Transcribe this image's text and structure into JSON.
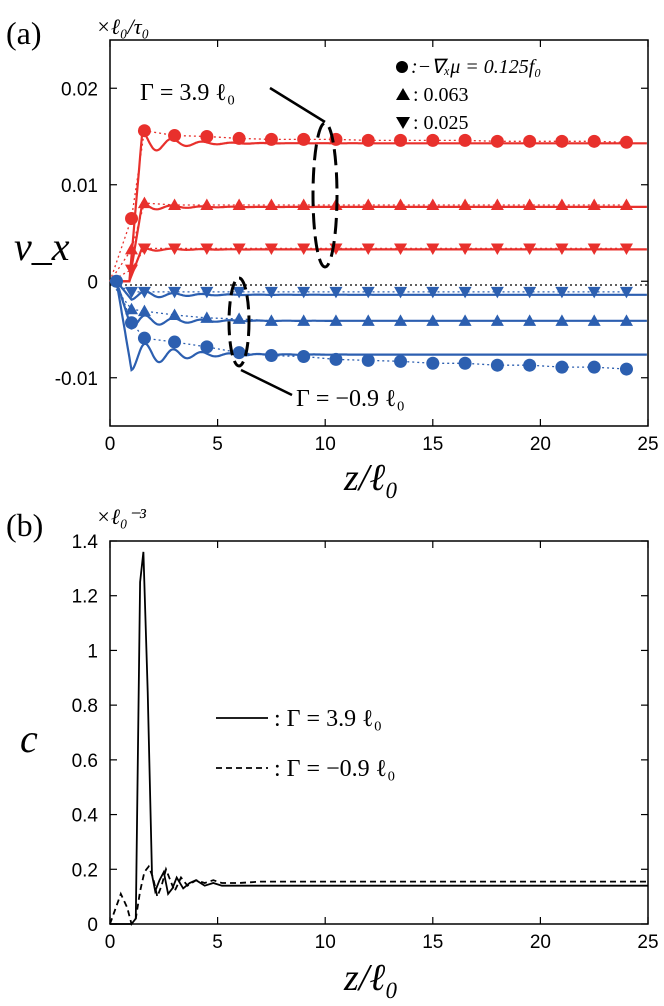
{
  "chart_data": [
    {
      "type": "line",
      "panel_label": "(a)",
      "unit_label": "×ℓ₀/τ₀",
      "xlabel": "z/ℓ₀",
      "ylabel": "v_x",
      "xlim": [
        0,
        25
      ],
      "ylim": [
        -0.015,
        0.025
      ],
      "xticks": [
        "0",
        "5",
        "10",
        "15",
        "20",
        "25"
      ],
      "yticks": [
        "-0.01",
        "0",
        "0.01",
        "0.02"
      ],
      "legend": {
        "placement": "top-right",
        "entries": [
          {
            "marker": "circle",
            "label": ":−∇ₓμ = 0.125f₀"
          },
          {
            "marker": "triangle-up",
            "label": ": 0.063"
          },
          {
            "marker": "triangle-down",
            "label": ": 0.025"
          }
        ]
      },
      "annotations": [
        {
          "text": "Γ = 3.9 ℓ₀",
          "target": "red curves"
        },
        {
          "text": "Γ = −0.9 ℓ₀",
          "target": "blue curves"
        }
      ],
      "colors": {
        "gamma_3_9": "#e8302c",
        "gamma_m0_9": "#2c5fb0"
      },
      "series": [
        {
          "group": "Γ = 3.9 ℓ₀",
          "marker": "circle",
          "color": "#e8302c",
          "line_level": 0.0143,
          "overshoot": 0.0155,
          "points_x": [
            1.0,
            1.6,
            3.0,
            4.5,
            6.0,
            7.5,
            9.0,
            10.5,
            12.0,
            13.5,
            15.0,
            16.5,
            18.0,
            19.5,
            21.0,
            22.5,
            24.0
          ],
          "points_y": [
            0.0065,
            0.0156,
            0.0151,
            0.015,
            0.0148,
            0.0147,
            0.0147,
            0.0147,
            0.0146,
            0.0146,
            0.0146,
            0.0146,
            0.0145,
            0.0145,
            0.0145,
            0.0145,
            0.0144
          ]
        },
        {
          "group": "Γ = 3.9 ℓ₀",
          "marker": "triangle-up",
          "color": "#e8302c",
          "line_level": 0.0077,
          "overshoot": 0.0081,
          "points_x": [
            1.0,
            1.6,
            3.0,
            4.5,
            6.0,
            7.5,
            9.0,
            10.5,
            12.0,
            13.5,
            15.0,
            16.5,
            18.0,
            19.5,
            21.0,
            22.5,
            24.0
          ],
          "points_y": [
            0.0033,
            0.0081,
            0.0079,
            0.0079,
            0.0079,
            0.0079,
            0.0079,
            0.0079,
            0.0079,
            0.0079,
            0.0079,
            0.0079,
            0.0079,
            0.0079,
            0.0079,
            0.0079,
            0.0079
          ]
        },
        {
          "group": "Γ = 3.9 ℓ₀",
          "marker": "triangle-down",
          "color": "#e8302c",
          "line_level": 0.0033,
          "overshoot": 0.0035,
          "points_x": [
            1.0,
            1.6,
            3.0,
            4.5,
            6.0,
            7.5,
            9.0,
            10.5,
            12.0,
            13.5,
            15.0,
            16.5,
            18.0,
            19.5,
            21.0,
            22.5,
            24.0
          ],
          "points_y": [
            0.0012,
            0.0034,
            0.0034,
            0.0034,
            0.0034,
            0.0034,
            0.0034,
            0.0034,
            0.0034,
            0.0034,
            0.0034,
            0.0034,
            0.0034,
            0.0034,
            0.0034,
            0.0034,
            0.0034
          ]
        },
        {
          "group": "Γ = −0.9 ℓ₀",
          "marker": "circle",
          "color": "#2c5fb0",
          "line_level": -0.0076,
          "overshoot": -0.0092,
          "points_x": [
            0.3,
            1.0,
            1.6,
            3.0,
            4.5,
            6.0,
            7.5,
            9.0,
            10.5,
            12.0,
            13.5,
            15.0,
            16.5,
            18.0,
            19.5,
            21.0,
            22.5,
            24.0
          ],
          "points_y": [
            0.0,
            -0.0043,
            -0.0059,
            -0.0063,
            -0.0068,
            -0.0074,
            -0.0077,
            -0.0078,
            -0.0081,
            -0.0082,
            -0.0083,
            -0.0085,
            -0.0085,
            -0.0087,
            -0.0087,
            -0.0089,
            -0.0089,
            -0.0091
          ]
        },
        {
          "group": "Γ = −0.9 ℓ₀",
          "marker": "triangle-up",
          "color": "#2c5fb0",
          "line_level": -0.0041,
          "overshoot": -0.0049,
          "points_x": [
            1.0,
            1.6,
            3.0,
            4.5,
            6.0,
            7.5,
            9.0,
            10.5,
            12.0,
            13.5,
            15.0,
            16.5,
            18.0,
            19.5,
            21.0,
            22.5,
            24.0
          ],
          "points_y": [
            -0.0029,
            -0.0031,
            -0.0035,
            -0.0038,
            -0.0039,
            -0.0041,
            -0.0041,
            -0.0041,
            -0.0041,
            -0.0041,
            -0.0041,
            -0.0041,
            -0.0041,
            -0.0041,
            -0.0041,
            -0.0041,
            -0.0041
          ]
        },
        {
          "group": "Γ = −0.9 ℓ₀",
          "marker": "triangle-down",
          "color": "#2c5fb0",
          "line_level": -0.0014,
          "overshoot": -0.0019,
          "points_x": [
            1.0,
            1.6,
            3.0,
            4.5,
            6.0,
            7.5,
            9.0,
            10.5,
            12.0,
            13.5,
            15.0,
            16.5,
            18.0,
            19.5,
            21.0,
            22.5,
            24.0
          ],
          "points_y": [
            -0.0011,
            -0.0011,
            -0.0011,
            -0.0011,
            -0.0011,
            -0.0011,
            -0.0011,
            -0.0011,
            -0.0011,
            -0.0011,
            -0.0011,
            -0.0011,
            -0.0011,
            -0.0011,
            -0.0011,
            -0.0011,
            -0.0011
          ]
        }
      ]
    },
    {
      "type": "line",
      "panel_label": "(b)",
      "unit_label": "×ℓ₀⁻³",
      "xlabel": "z/ℓ₀",
      "ylabel": "c",
      "xlim": [
        0,
        25
      ],
      "ylim": [
        0,
        1.4
      ],
      "xticks": [
        "0",
        "5",
        "10",
        "15",
        "20",
        "25"
      ],
      "yticks": [
        "0",
        "0.2",
        "0.4",
        "0.6",
        "0.8",
        "1",
        "1.2",
        "1.4"
      ],
      "legend": {
        "placement": "center-right",
        "entries": [
          {
            "style": "solid",
            "label": ": Γ = 3.9 ℓ₀"
          },
          {
            "style": "dashed",
            "label": ": Γ = −0.9 ℓ₀"
          }
        ]
      },
      "series": [
        {
          "style": "solid",
          "x": [
            0,
            1.0,
            1.2,
            1.4,
            1.55,
            1.75,
            1.95,
            2.1,
            2.3,
            2.5,
            2.7,
            2.9,
            3.1,
            3.4,
            3.7,
            4.0,
            4.4,
            4.8,
            5.2,
            5.6,
            6.0,
            7,
            10,
            15,
            20,
            25
          ],
          "y": [
            0,
            0,
            0.02,
            1.25,
            1.36,
            0.85,
            0.18,
            0.12,
            0.16,
            0.19,
            0.11,
            0.13,
            0.17,
            0.13,
            0.15,
            0.16,
            0.14,
            0.15,
            0.14,
            0.14,
            0.14,
            0.14,
            0.14,
            0.14,
            0.14,
            0.14
          ]
        },
        {
          "style": "dashed",
          "x": [
            0,
            0.5,
            0.8,
            1.0,
            1.2,
            1.4,
            1.6,
            1.8,
            2.0,
            2.2,
            2.4,
            2.6,
            2.8,
            3.0,
            3.3,
            3.6,
            4.0,
            4.4,
            4.8,
            5.2,
            6.0,
            7,
            10,
            15,
            20,
            25
          ],
          "y": [
            0,
            0.11,
            0.06,
            0.0,
            0.02,
            0.12,
            0.19,
            0.21,
            0.17,
            0.1,
            0.14,
            0.2,
            0.16,
            0.12,
            0.17,
            0.14,
            0.16,
            0.15,
            0.16,
            0.15,
            0.15,
            0.155,
            0.155,
            0.155,
            0.155,
            0.155
          ]
        }
      ]
    }
  ]
}
